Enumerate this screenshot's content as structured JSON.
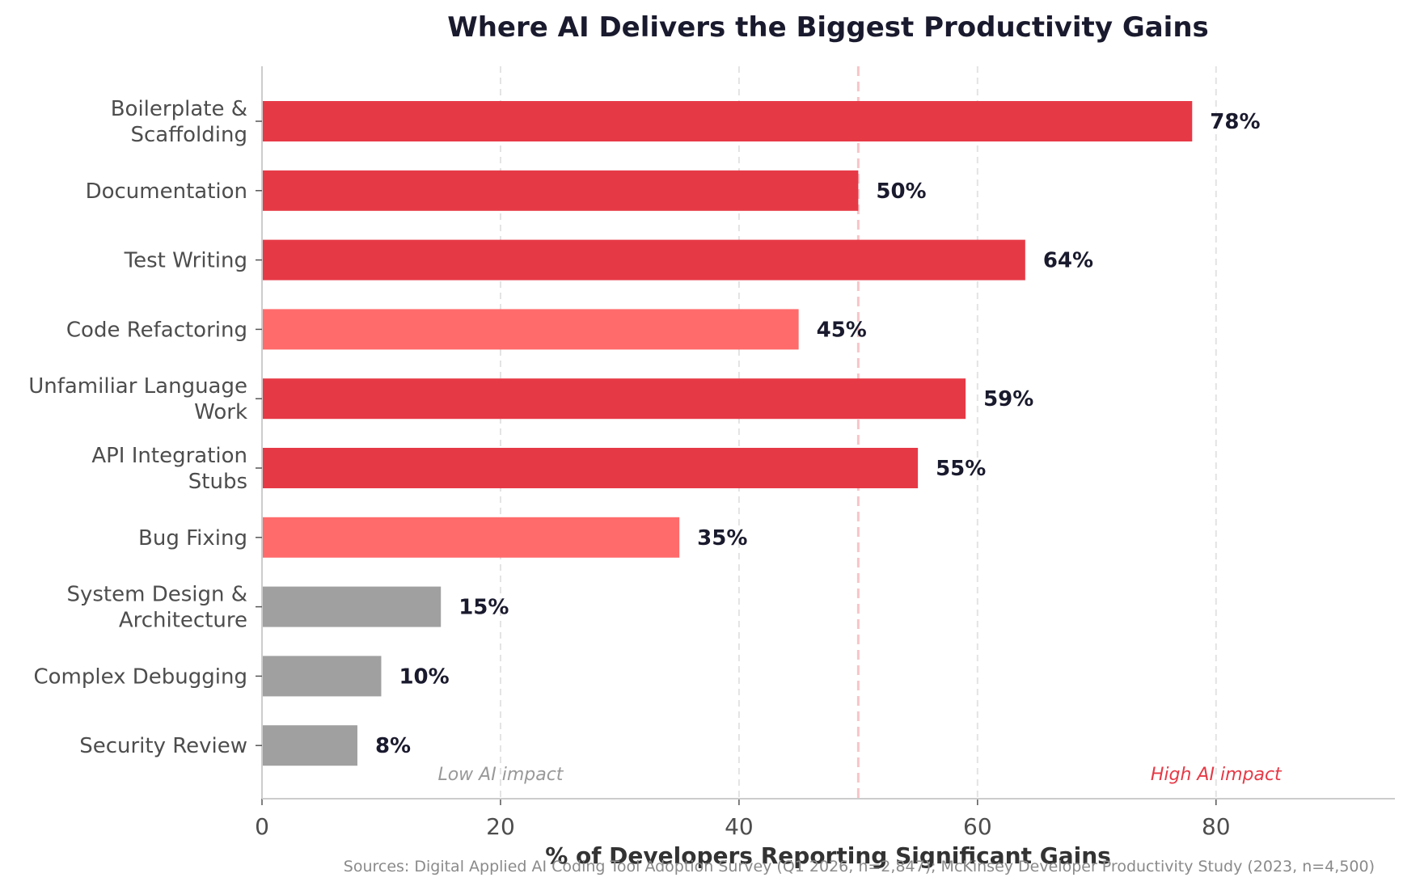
{
  "chart_data": {
    "type": "bar",
    "orientation": "horizontal",
    "title": "Where AI Delivers the Biggest Productivity Gains",
    "xlabel": "% of Developers Reporting Significant Gains",
    "ylabel": "",
    "xlim": [
      0,
      95
    ],
    "xticks": [
      0,
      20,
      40,
      60,
      80
    ],
    "grid": "vertical dashed",
    "categories": [
      [
        "Boilerplate &",
        "Scaffolding"
      ],
      [
        "Documentation"
      ],
      [
        "Test Writing"
      ],
      [
        "Code Refactoring"
      ],
      [
        "Unfamiliar Language",
        "Work"
      ],
      [
        "API Integration",
        "Stubs"
      ],
      [
        "Bug Fixing"
      ],
      [
        "System Design &",
        "Architecture"
      ],
      [
        "Complex Debugging"
      ],
      [
        "Security Review"
      ]
    ],
    "values": [
      78,
      50,
      64,
      45,
      59,
      55,
      35,
      15,
      10,
      8
    ],
    "value_labels": [
      "78%",
      "50%",
      "64%",
      "45%",
      "59%",
      "55%",
      "35%",
      "15%",
      "10%",
      "8%"
    ],
    "bar_colors": [
      "#e63946",
      "#e63946",
      "#e63946",
      "#ff6b6b",
      "#e63946",
      "#e63946",
      "#ff6b6b",
      "#a0a0a0",
      "#a0a0a0",
      "#a0a0a0"
    ],
    "reference_line": {
      "x": 50,
      "color": "#f7c5c8",
      "style": "dashed"
    },
    "annotations": [
      {
        "text": "Low AI impact",
        "x": 20,
        "color": "#999999"
      },
      {
        "text": "High AI impact",
        "x": 80,
        "color": "#e63946"
      }
    ],
    "source": "Sources: Digital Applied AI Coding Tool Adoption Survey (Q1 2026, n=2,847); McKinsey Developer Productivity Study (2023, n=4,500)"
  }
}
